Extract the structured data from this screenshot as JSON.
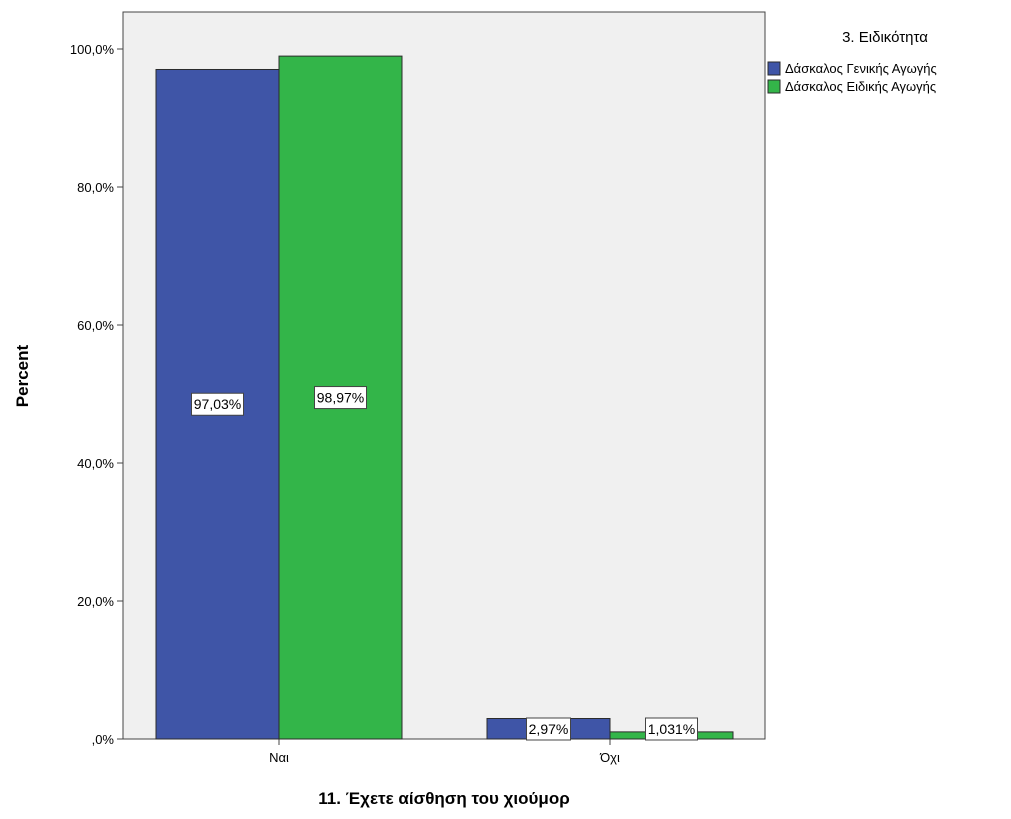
{
  "chart_data": {
    "type": "bar",
    "title": "",
    "xlabel": "11. Έχετε αίσθηση του χιούμορ",
    "ylabel": "Percent",
    "categories": [
      "Ναι",
      "Όχι"
    ],
    "series": [
      {
        "name": "Δάσκαλος Γενικής Αγωγής",
        "values": [
          97.03,
          2.97
        ],
        "labels": [
          "97,03%",
          "2,97%"
        ],
        "color": "#3f55a7"
      },
      {
        "name": "Δάσκαλος Ειδικής Αγωγής",
        "values": [
          98.97,
          1.031
        ],
        "labels": [
          "98,97%",
          "1,031%"
        ],
        "color": "#33b549"
      }
    ],
    "ylim": [
      0,
      105
    ],
    "yticks": [
      0,
      20,
      40,
      60,
      80,
      100
    ],
    "ytick_labels": [
      ",0%",
      "20,0%",
      "40,0%",
      "60,0%",
      "80,0%",
      "100,0%"
    ],
    "legend_title": "3. Ειδικότητα",
    "legend_position": "top-right",
    "plot_background": "#f0f0f0",
    "grid": false
  }
}
